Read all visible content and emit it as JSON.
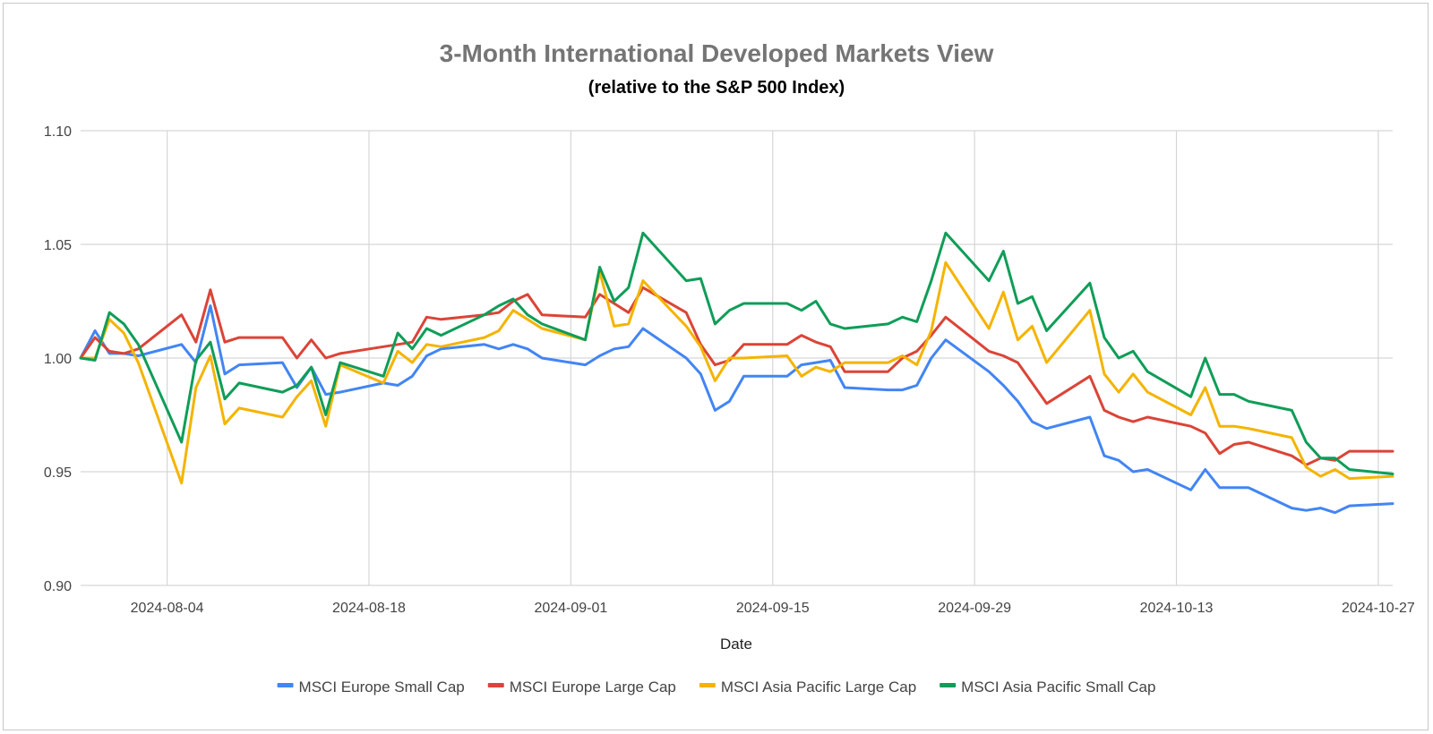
{
  "chart_data": {
    "type": "line",
    "title": "3-Month International Developed Markets View",
    "subtitle": "(relative to the S&P 500 Index)",
    "xlabel": "Date",
    "ylabel": "",
    "ylim": [
      0.9,
      1.1
    ],
    "yticks": [
      "0.90",
      "0.95",
      "1.00",
      "1.05",
      "1.10"
    ],
    "ytick_values": [
      0.9,
      0.95,
      1.0,
      1.05,
      1.1
    ],
    "x_start": "2024-07-29",
    "x_end": "2024-10-28",
    "xticks": [
      "2024-08-04",
      "2024-08-18",
      "2024-09-01",
      "2024-09-15",
      "2024-09-29",
      "2024-10-13",
      "2024-10-27"
    ],
    "grid": true,
    "legend_position": "bottom",
    "series": [
      {
        "name": "MSCI Europe Small Cap",
        "color": "#4285F4",
        "points": [
          [
            "2024-07-29",
            1.0
          ],
          [
            "2024-07-30",
            1.012
          ],
          [
            "2024-07-31",
            1.002
          ],
          [
            "2024-08-01",
            1.002
          ],
          [
            "2024-08-02",
            1.001
          ],
          [
            "2024-08-05",
            1.006
          ],
          [
            "2024-08-06",
            0.998
          ],
          [
            "2024-08-07",
            1.023
          ],
          [
            "2024-08-08",
            0.993
          ],
          [
            "2024-08-09",
            0.997
          ],
          [
            "2024-08-12",
            0.998
          ],
          [
            "2024-08-13",
            0.987
          ],
          [
            "2024-08-14",
            0.996
          ],
          [
            "2024-08-15",
            0.984
          ],
          [
            "2024-08-16",
            0.985
          ],
          [
            "2024-08-19",
            0.989
          ],
          [
            "2024-08-20",
            0.988
          ],
          [
            "2024-08-21",
            0.992
          ],
          [
            "2024-08-22",
            1.001
          ],
          [
            "2024-08-23",
            1.004
          ],
          [
            "2024-08-26",
            1.006
          ],
          [
            "2024-08-27",
            1.004
          ],
          [
            "2024-08-28",
            1.006
          ],
          [
            "2024-08-29",
            1.004
          ],
          [
            "2024-08-30",
            1.0
          ],
          [
            "2024-09-02",
            0.997
          ],
          [
            "2024-09-03",
            1.001
          ],
          [
            "2024-09-04",
            1.004
          ],
          [
            "2024-09-05",
            1.005
          ],
          [
            "2024-09-06",
            1.013
          ],
          [
            "2024-09-09",
            1.0
          ],
          [
            "2024-09-10",
            0.993
          ],
          [
            "2024-09-11",
            0.977
          ],
          [
            "2024-09-12",
            0.981
          ],
          [
            "2024-09-13",
            0.992
          ],
          [
            "2024-09-16",
            0.992
          ],
          [
            "2024-09-17",
            0.997
          ],
          [
            "2024-09-18",
            0.998
          ],
          [
            "2024-09-19",
            0.999
          ],
          [
            "2024-09-20",
            0.987
          ],
          [
            "2024-09-23",
            0.986
          ],
          [
            "2024-09-24",
            0.986
          ],
          [
            "2024-09-25",
            0.988
          ],
          [
            "2024-09-26",
            1.0
          ],
          [
            "2024-09-27",
            1.008
          ],
          [
            "2024-09-30",
            0.994
          ],
          [
            "2024-10-01",
            0.988
          ],
          [
            "2024-10-02",
            0.981
          ],
          [
            "2024-10-03",
            0.972
          ],
          [
            "2024-10-04",
            0.969
          ],
          [
            "2024-10-07",
            0.974
          ],
          [
            "2024-10-08",
            0.957
          ],
          [
            "2024-10-09",
            0.955
          ],
          [
            "2024-10-10",
            0.95
          ],
          [
            "2024-10-11",
            0.951
          ],
          [
            "2024-10-14",
            0.942
          ],
          [
            "2024-10-15",
            0.951
          ],
          [
            "2024-10-16",
            0.943
          ],
          [
            "2024-10-17",
            0.943
          ],
          [
            "2024-10-18",
            0.943
          ],
          [
            "2024-10-21",
            0.934
          ],
          [
            "2024-10-22",
            0.933
          ],
          [
            "2024-10-23",
            0.934
          ],
          [
            "2024-10-24",
            0.932
          ],
          [
            "2024-10-25",
            0.935
          ],
          [
            "2024-10-28",
            0.936
          ]
        ]
      },
      {
        "name": "MSCI Europe Large Cap",
        "color": "#DB4437",
        "points": [
          [
            "2024-07-29",
            1.0
          ],
          [
            "2024-07-30",
            1.009
          ],
          [
            "2024-07-31",
            1.003
          ],
          [
            "2024-08-01",
            1.002
          ],
          [
            "2024-08-02",
            1.004
          ],
          [
            "2024-08-05",
            1.019
          ],
          [
            "2024-08-06",
            1.007
          ],
          [
            "2024-08-07",
            1.03
          ],
          [
            "2024-08-08",
            1.007
          ],
          [
            "2024-08-09",
            1.009
          ],
          [
            "2024-08-12",
            1.009
          ],
          [
            "2024-08-13",
            1.0
          ],
          [
            "2024-08-14",
            1.008
          ],
          [
            "2024-08-15",
            1.0
          ],
          [
            "2024-08-16",
            1.002
          ],
          [
            "2024-08-19",
            1.005
          ],
          [
            "2024-08-20",
            1.006
          ],
          [
            "2024-08-21",
            1.007
          ],
          [
            "2024-08-22",
            1.018
          ],
          [
            "2024-08-23",
            1.017
          ],
          [
            "2024-08-26",
            1.019
          ],
          [
            "2024-08-27",
            1.02
          ],
          [
            "2024-08-28",
            1.025
          ],
          [
            "2024-08-29",
            1.028
          ],
          [
            "2024-08-30",
            1.019
          ],
          [
            "2024-09-02",
            1.018
          ],
          [
            "2024-09-03",
            1.028
          ],
          [
            "2024-09-04",
            1.024
          ],
          [
            "2024-09-05",
            1.02
          ],
          [
            "2024-09-06",
            1.031
          ],
          [
            "2024-09-09",
            1.02
          ],
          [
            "2024-09-10",
            1.006
          ],
          [
            "2024-09-11",
            0.997
          ],
          [
            "2024-09-12",
            0.999
          ],
          [
            "2024-09-13",
            1.006
          ],
          [
            "2024-09-16",
            1.006
          ],
          [
            "2024-09-17",
            1.01
          ],
          [
            "2024-09-18",
            1.007
          ],
          [
            "2024-09-19",
            1.005
          ],
          [
            "2024-09-20",
            0.994
          ],
          [
            "2024-09-23",
            0.994
          ],
          [
            "2024-09-24",
            1.0
          ],
          [
            "2024-09-25",
            1.003
          ],
          [
            "2024-09-26",
            1.01
          ],
          [
            "2024-09-27",
            1.018
          ],
          [
            "2024-09-30",
            1.003
          ],
          [
            "2024-10-01",
            1.001
          ],
          [
            "2024-10-02",
            0.998
          ],
          [
            "2024-10-03",
            0.989
          ],
          [
            "2024-10-04",
            0.98
          ],
          [
            "2024-10-07",
            0.992
          ],
          [
            "2024-10-08",
            0.977
          ],
          [
            "2024-10-09",
            0.974
          ],
          [
            "2024-10-10",
            0.972
          ],
          [
            "2024-10-11",
            0.974
          ],
          [
            "2024-10-14",
            0.97
          ],
          [
            "2024-10-15",
            0.967
          ],
          [
            "2024-10-16",
            0.958
          ],
          [
            "2024-10-17",
            0.962
          ],
          [
            "2024-10-18",
            0.963
          ],
          [
            "2024-10-21",
            0.957
          ],
          [
            "2024-10-22",
            0.953
          ],
          [
            "2024-10-23",
            0.956
          ],
          [
            "2024-10-24",
            0.955
          ],
          [
            "2024-10-25",
            0.959
          ],
          [
            "2024-10-28",
            0.959
          ]
        ]
      },
      {
        "name": "MSCI Asia Pacific Large Cap",
        "color": "#F4B400",
        "points": [
          [
            "2024-07-29",
            1.0
          ],
          [
            "2024-07-30",
            1.0
          ],
          [
            "2024-07-31",
            1.017
          ],
          [
            "2024-08-01",
            1.011
          ],
          [
            "2024-08-02",
            0.998
          ],
          [
            "2024-08-05",
            0.945
          ],
          [
            "2024-08-06",
            0.987
          ],
          [
            "2024-08-07",
            1.001
          ],
          [
            "2024-08-08",
            0.971
          ],
          [
            "2024-08-09",
            0.978
          ],
          [
            "2024-08-12",
            0.974
          ],
          [
            "2024-08-13",
            0.983
          ],
          [
            "2024-08-14",
            0.99
          ],
          [
            "2024-08-15",
            0.97
          ],
          [
            "2024-08-16",
            0.997
          ],
          [
            "2024-08-19",
            0.989
          ],
          [
            "2024-08-20",
            1.003
          ],
          [
            "2024-08-21",
            0.998
          ],
          [
            "2024-08-22",
            1.006
          ],
          [
            "2024-08-23",
            1.005
          ],
          [
            "2024-08-26",
            1.009
          ],
          [
            "2024-08-27",
            1.012
          ],
          [
            "2024-08-28",
            1.021
          ],
          [
            "2024-08-29",
            1.017
          ],
          [
            "2024-08-30",
            1.013
          ],
          [
            "2024-09-02",
            1.008
          ],
          [
            "2024-09-03",
            1.038
          ],
          [
            "2024-09-04",
            1.014
          ],
          [
            "2024-09-05",
            1.015
          ],
          [
            "2024-09-06",
            1.034
          ],
          [
            "2024-09-09",
            1.014
          ],
          [
            "2024-09-10",
            1.005
          ],
          [
            "2024-09-11",
            0.99
          ],
          [
            "2024-09-12",
            1.0
          ],
          [
            "2024-09-13",
            1.0
          ],
          [
            "2024-09-16",
            1.001
          ],
          [
            "2024-09-17",
            0.992
          ],
          [
            "2024-09-18",
            0.996
          ],
          [
            "2024-09-19",
            0.994
          ],
          [
            "2024-09-20",
            0.998
          ],
          [
            "2024-09-23",
            0.998
          ],
          [
            "2024-09-24",
            1.001
          ],
          [
            "2024-09-25",
            0.997
          ],
          [
            "2024-09-26",
            1.012
          ],
          [
            "2024-09-27",
            1.042
          ],
          [
            "2024-09-30",
            1.013
          ],
          [
            "2024-10-01",
            1.029
          ],
          [
            "2024-10-02",
            1.008
          ],
          [
            "2024-10-03",
            1.014
          ],
          [
            "2024-10-04",
            0.998
          ],
          [
            "2024-10-07",
            1.021
          ],
          [
            "2024-10-08",
            0.993
          ],
          [
            "2024-10-09",
            0.985
          ],
          [
            "2024-10-10",
            0.993
          ],
          [
            "2024-10-11",
            0.985
          ],
          [
            "2024-10-14",
            0.975
          ],
          [
            "2024-10-15",
            0.987
          ],
          [
            "2024-10-16",
            0.97
          ],
          [
            "2024-10-17",
            0.97
          ],
          [
            "2024-10-18",
            0.969
          ],
          [
            "2024-10-21",
            0.965
          ],
          [
            "2024-10-22",
            0.952
          ],
          [
            "2024-10-23",
            0.948
          ],
          [
            "2024-10-24",
            0.951
          ],
          [
            "2024-10-25",
            0.947
          ],
          [
            "2024-10-28",
            0.948
          ]
        ]
      },
      {
        "name": "MSCI Asia Pacific Small Cap",
        "color": "#0F9D58",
        "points": [
          [
            "2024-07-29",
            1.0
          ],
          [
            "2024-07-30",
            0.999
          ],
          [
            "2024-07-31",
            1.02
          ],
          [
            "2024-08-01",
            1.015
          ],
          [
            "2024-08-02",
            1.006
          ],
          [
            "2024-08-05",
            0.963
          ],
          [
            "2024-08-06",
            0.999
          ],
          [
            "2024-08-07",
            1.007
          ],
          [
            "2024-08-08",
            0.982
          ],
          [
            "2024-08-09",
            0.989
          ],
          [
            "2024-08-12",
            0.985
          ],
          [
            "2024-08-13",
            0.988
          ],
          [
            "2024-08-14",
            0.996
          ],
          [
            "2024-08-15",
            0.975
          ],
          [
            "2024-08-16",
            0.998
          ],
          [
            "2024-08-19",
            0.992
          ],
          [
            "2024-08-20",
            1.011
          ],
          [
            "2024-08-21",
            1.004
          ],
          [
            "2024-08-22",
            1.013
          ],
          [
            "2024-08-23",
            1.01
          ],
          [
            "2024-08-26",
            1.019
          ],
          [
            "2024-08-27",
            1.023
          ],
          [
            "2024-08-28",
            1.026
          ],
          [
            "2024-08-29",
            1.019
          ],
          [
            "2024-08-30",
            1.015
          ],
          [
            "2024-09-02",
            1.008
          ],
          [
            "2024-09-03",
            1.04
          ],
          [
            "2024-09-04",
            1.025
          ],
          [
            "2024-09-05",
            1.031
          ],
          [
            "2024-09-06",
            1.055
          ],
          [
            "2024-09-09",
            1.034
          ],
          [
            "2024-09-10",
            1.035
          ],
          [
            "2024-09-11",
            1.015
          ],
          [
            "2024-09-12",
            1.021
          ],
          [
            "2024-09-13",
            1.024
          ],
          [
            "2024-09-16",
            1.024
          ],
          [
            "2024-09-17",
            1.021
          ],
          [
            "2024-09-18",
            1.025
          ],
          [
            "2024-09-19",
            1.015
          ],
          [
            "2024-09-20",
            1.013
          ],
          [
            "2024-09-23",
            1.015
          ],
          [
            "2024-09-24",
            1.018
          ],
          [
            "2024-09-25",
            1.016
          ],
          [
            "2024-09-26",
            1.034
          ],
          [
            "2024-09-27",
            1.055
          ],
          [
            "2024-09-30",
            1.034
          ],
          [
            "2024-10-01",
            1.047
          ],
          [
            "2024-10-02",
            1.024
          ],
          [
            "2024-10-03",
            1.027
          ],
          [
            "2024-10-04",
            1.012
          ],
          [
            "2024-10-07",
            1.033
          ],
          [
            "2024-10-08",
            1.009
          ],
          [
            "2024-10-09",
            1.0
          ],
          [
            "2024-10-10",
            1.003
          ],
          [
            "2024-10-11",
            0.994
          ],
          [
            "2024-10-14",
            0.983
          ],
          [
            "2024-10-15",
            1.0
          ],
          [
            "2024-10-16",
            0.984
          ],
          [
            "2024-10-17",
            0.984
          ],
          [
            "2024-10-18",
            0.981
          ],
          [
            "2024-10-21",
            0.977
          ],
          [
            "2024-10-22",
            0.963
          ],
          [
            "2024-10-23",
            0.956
          ],
          [
            "2024-10-24",
            0.956
          ],
          [
            "2024-10-25",
            0.951
          ],
          [
            "2024-10-28",
            0.949
          ]
        ]
      }
    ]
  }
}
